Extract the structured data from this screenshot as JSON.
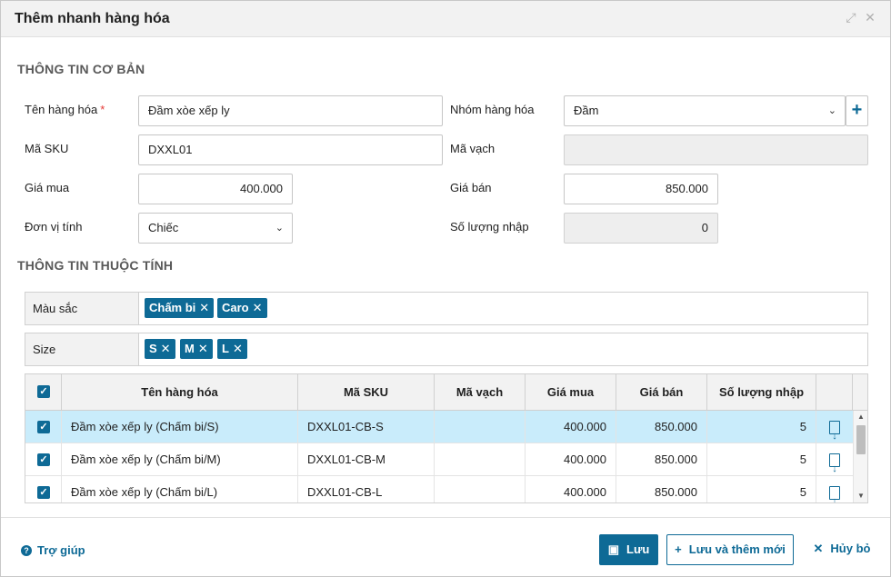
{
  "dialog": {
    "title": "Thêm nhanh hàng hóa",
    "expand_icon": "⤢",
    "close_icon": "✕"
  },
  "basic": {
    "section_title": "THÔNG TIN CƠ BẢN",
    "name_label": "Tên hàng hóa",
    "required_mark": "*",
    "name_value": "Đầm xòe xếp ly",
    "group_label": "Nhóm hàng hóa",
    "group_value": "Đầm",
    "sku_label": "Mã SKU",
    "sku_value": "DXXL01",
    "barcode_label": "Mã vạch",
    "barcode_value": "",
    "buy_price_label": "Giá mua",
    "buy_price_value": "400.000",
    "sell_price_label": "Giá bán",
    "sell_price_value": "850.000",
    "unit_label": "Đơn vị tính",
    "unit_value": "Chiếc",
    "qty_label": "Số lượng nhập",
    "qty_value": "0"
  },
  "attributes": {
    "section_title": "THÔNG TIN THUỘC TÍNH",
    "color_label": "Màu sắc",
    "color_tags": [
      "Chấm bi",
      "Caro"
    ],
    "size_label": "Size",
    "size_tags": [
      "S",
      "M",
      "L"
    ],
    "tag_remove_glyph": "✕"
  },
  "grid": {
    "columns": [
      "Tên hàng hóa",
      "Mã SKU",
      "Mã vạch",
      "Giá mua",
      "Giá bán",
      "Số lượng nhập"
    ],
    "rows": [
      {
        "name": "Đầm xòe xếp ly (Chấm bi/S)",
        "sku": "DXXL01-CB-S",
        "barcode": "",
        "buy": "400.000",
        "sell": "850.000",
        "qty": "5",
        "selected": true
      },
      {
        "name": "Đầm xòe xếp ly (Chấm bi/M)",
        "sku": "DXXL01-CB-M",
        "barcode": "",
        "buy": "400.000",
        "sell": "850.000",
        "qty": "5",
        "selected": false
      },
      {
        "name": "Đầm xòe xếp ly (Chấm bi/L)",
        "sku": "DXXL01-CB-L",
        "barcode": "",
        "buy": "400.000",
        "sell": "850.000",
        "qty": "5",
        "selected": false
      }
    ]
  },
  "footer": {
    "help_label": "Trợ giúp",
    "save_label": "Lưu",
    "save_new_label": "Lưu và thêm mới",
    "cancel_label": "Hủy bỏ"
  },
  "colors": {
    "accent": "#0e6a96",
    "selected_row": "#c9ecfb",
    "required": "#e53935"
  }
}
